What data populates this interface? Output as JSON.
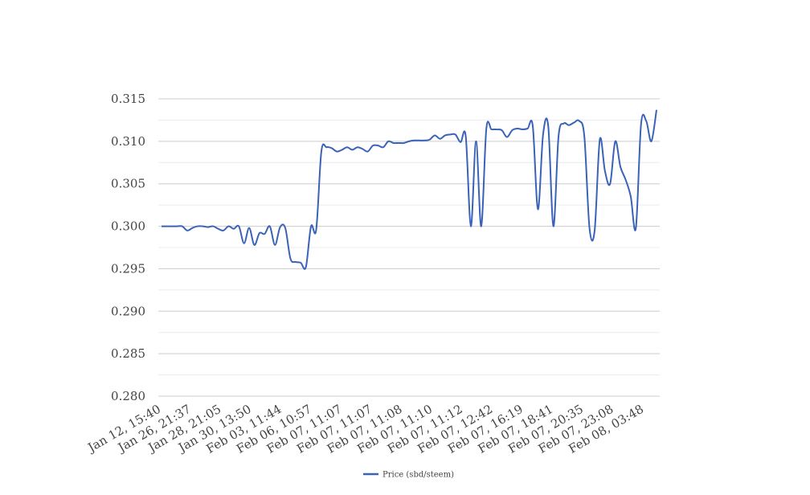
{
  "chart_data": {
    "type": "line",
    "x_tick_labels": [
      "Jan 12, 15:40",
      "Jan 26, 21:37",
      "Jan 28, 21:05",
      "Jan 30, 13:50",
      "Feb 03, 11:44",
      "Feb 06, 10:57",
      "Feb 07, 11:07",
      "Feb 07, 11:07",
      "Feb 07, 11:08",
      "Feb 07, 11:10",
      "Feb 07, 11:12",
      "Feb 07, 12:42",
      "Feb 07, 16:19",
      "Feb 07, 18:41",
      "Feb 07, 20:35",
      "Feb 07, 23:08",
      "Feb 08, 03:48"
    ],
    "ylim": [
      0.28,
      0.315
    ],
    "y_ticks": [
      "0.280",
      "0.285",
      "0.290",
      "0.295",
      "0.300",
      "0.305",
      "0.310",
      "0.315"
    ],
    "grid": true,
    "legend_position": "bottom",
    "series": [
      {
        "name": "Price (sbd/steem)",
        "color": "#3a62b8",
        "values": [
          0.3,
          0.3,
          0.3,
          0.3,
          0.3,
          0.2995,
          0.2998,
          0.3,
          0.3,
          0.2999,
          0.3,
          0.2997,
          0.2995,
          0.3,
          0.2997,
          0.3,
          0.298,
          0.2998,
          0.2978,
          0.2992,
          0.2991,
          0.3,
          0.2978,
          0.2999,
          0.2998,
          0.2962,
          0.2958,
          0.2957,
          0.2952,
          0.3,
          0.2996,
          0.3088,
          0.3093,
          0.3092,
          0.3088,
          0.309,
          0.3093,
          0.309,
          0.3093,
          0.3091,
          0.3088,
          0.3095,
          0.3095,
          0.3093,
          0.31,
          0.3098,
          0.3098,
          0.3098,
          0.31,
          0.3101,
          0.3101,
          0.3101,
          0.3102,
          0.3107,
          0.3103,
          0.3107,
          0.3108,
          0.3108,
          0.3099,
          0.3106,
          0.3,
          0.31,
          0.3,
          0.3115,
          0.3114,
          0.3114,
          0.3113,
          0.3105,
          0.3113,
          0.3115,
          0.3114,
          0.3115,
          0.3118,
          0.302,
          0.3108,
          0.3118,
          0.3,
          0.3106,
          0.3121,
          0.3119,
          0.3122,
          0.3124,
          0.3106,
          0.2998,
          0.2995,
          0.3102,
          0.3065,
          0.305,
          0.31,
          0.307,
          0.3055,
          0.3035,
          0.2998,
          0.312,
          0.3124,
          0.31,
          0.3137
        ]
      }
    ]
  }
}
